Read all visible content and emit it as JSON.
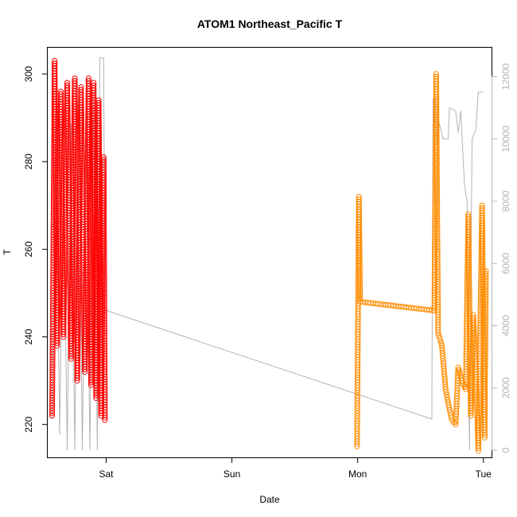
{
  "chart_data": {
    "type": "scatter",
    "title": "ATOM1 Northeast_Pacific T",
    "xlabel": "Date",
    "ylabel": "T",
    "x_ticks": [
      {
        "label": "Sat",
        "day": 1
      },
      {
        "label": "Sun",
        "day": 2
      },
      {
        "label": "Mon",
        "day": 3
      },
      {
        "label": "Tue",
        "day": 4
      }
    ],
    "xlim": [
      0.535,
      4.065
    ],
    "ylim": [
      212.5,
      306
    ],
    "y_ticks": [
      220,
      240,
      260,
      280,
      300
    ],
    "right_axis": {
      "ylim": [
        -230,
        12930
      ],
      "ticks": [
        0,
        2000,
        4000,
        6000,
        8000,
        10000,
        12000
      ],
      "color": "#b3b3b3"
    },
    "series": [
      {
        "color": "#ff0000",
        "marker": "open-circle",
        "segments": [
          [
            0.57,
            222
          ],
          [
            0.59,
            303
          ],
          [
            0.61,
            238
          ],
          [
            0.64,
            296
          ],
          [
            0.66,
            240
          ],
          [
            0.69,
            298
          ],
          [
            0.72,
            235
          ],
          [
            0.75,
            299
          ],
          [
            0.77,
            230
          ],
          [
            0.8,
            297
          ],
          [
            0.83,
            232
          ],
          [
            0.86,
            299
          ],
          [
            0.88,
            229
          ],
          [
            0.9,
            298
          ],
          [
            0.92,
            226
          ],
          [
            0.94,
            294
          ],
          [
            0.96,
            222
          ],
          [
            0.98,
            281
          ],
          [
            0.99,
            221
          ]
        ]
      },
      {
        "color": "#ff8c00",
        "marker": "open-circle",
        "segments": [
          [
            2.995,
            215
          ],
          [
            3.01,
            272
          ],
          [
            3.02,
            248
          ],
          [
            3.61,
            246
          ],
          [
            3.625,
            300
          ],
          [
            3.64,
            241
          ],
          [
            3.67,
            238
          ],
          [
            3.7,
            228
          ],
          [
            3.72,
            225
          ],
          [
            3.75,
            221
          ],
          [
            3.78,
            220
          ],
          [
            3.8,
            233
          ],
          [
            3.83,
            230
          ],
          [
            3.86,
            228
          ],
          [
            3.88,
            268
          ],
          [
            3.9,
            222
          ],
          [
            3.92,
            245
          ],
          [
            3.94,
            232
          ],
          [
            3.96,
            214
          ],
          [
            3.99,
            270
          ],
          [
            4.01,
            217
          ],
          [
            4.02,
            255
          ]
        ]
      },
      {
        "color": "#b3b3b3",
        "marker": "line",
        "axis": "right",
        "values": [
          [
            0.57,
            1000
          ],
          [
            0.6,
            11000
          ],
          [
            0.63,
            500
          ],
          [
            0.66,
            9000
          ],
          [
            0.69,
            0
          ],
          [
            0.72,
            10500
          ],
          [
            0.75,
            0
          ],
          [
            0.78,
            11000
          ],
          [
            0.81,
            0
          ],
          [
            0.84,
            10000
          ],
          [
            0.87,
            0
          ],
          [
            0.9,
            11500
          ],
          [
            0.93,
            0
          ],
          [
            0.95,
            12600
          ],
          [
            0.98,
            12600
          ],
          [
            0.99,
            4500
          ],
          [
            3.59,
            1000
          ],
          [
            3.6,
            11300
          ],
          [
            3.62,
            11300
          ],
          [
            3.63,
            9800
          ],
          [
            3.65,
            10500
          ],
          [
            3.68,
            10000
          ],
          [
            3.72,
            10000
          ],
          [
            3.73,
            11000
          ],
          [
            3.78,
            10900
          ],
          [
            3.8,
            10200
          ],
          [
            3.82,
            10900
          ],
          [
            3.85,
            8500
          ],
          [
            3.87,
            8000
          ],
          [
            3.89,
            0
          ],
          [
            3.91,
            10000
          ],
          [
            3.94,
            10300
          ],
          [
            3.96,
            11500
          ],
          [
            3.98,
            11500
          ],
          [
            4.0,
            11500
          ]
        ]
      }
    ]
  }
}
